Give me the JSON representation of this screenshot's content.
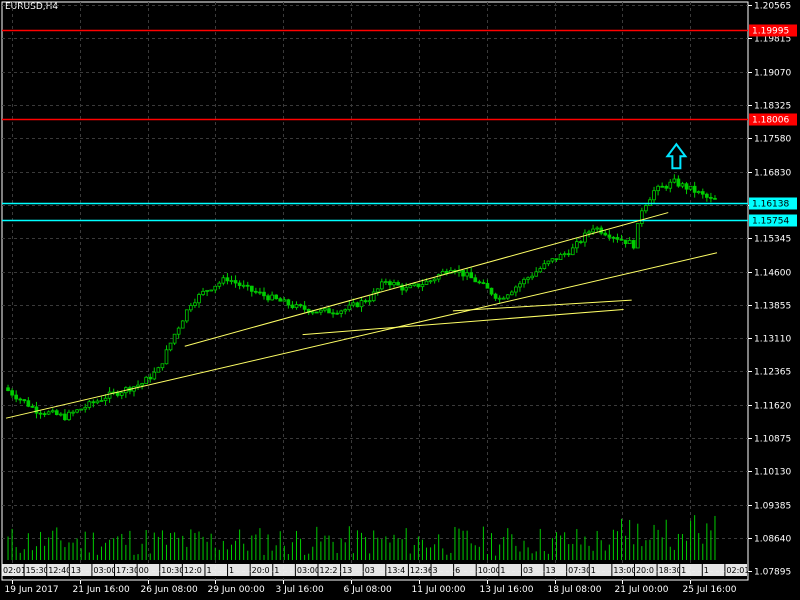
{
  "window": {
    "title": "EURUSD,H4"
  },
  "colors": {
    "background": "#000000",
    "grid": "#3a3a3a",
    "axis": "#ffffff",
    "candle": "#00cc00",
    "volume": "#00cc00",
    "hline_red": "#ff0000",
    "hline_cyan": "#00ffff",
    "trendline": "#ffff66",
    "arrow": "#00e5ff",
    "badge_text": "#ffffff"
  },
  "chart_data": {
    "type": "candlestick",
    "symbol": "EURUSD",
    "timeframe": "H4",
    "ylim": [
      1.077,
      1.2063
    ],
    "y_ticks": [
      "1.20565",
      "1.19815",
      "1.19070",
      "1.18325",
      "1.17580",
      "1.16830",
      "1.16085",
      "1.15345",
      "1.14600",
      "1.13855",
      "1.13110",
      "1.12365",
      "1.11620",
      "1.10875",
      "1.10130",
      "1.09385",
      "1.08640",
      "1.07895"
    ],
    "x_ticks": [
      "19 Jun 2017",
      "21 Jun 16:00",
      "26 Jun 08:00",
      "29 Jun 00:00",
      "3 Jul 16:00",
      "6 Jul 08:00",
      "11 Jul 00:00",
      "13 Jul 16:00",
      "18 Jul 08:00",
      "21 Jul 00:00",
      "25 Jul 16:00"
    ],
    "horizontal_lines": [
      {
        "label": "1.19995",
        "value": 1.19995,
        "color": "red"
      },
      {
        "label": "1.18006",
        "value": 1.18006,
        "color": "red"
      },
      {
        "label": "1.16138",
        "value": 1.16138,
        "color": "cyan"
      },
      {
        "label": "1.15754",
        "value": 1.15754,
        "color": "cyan"
      }
    ],
    "trendlines": [
      {
        "start": [
          0,
          1.1132
        ],
        "end": [
          175,
          1.1502
        ]
      },
      {
        "start": [
          44,
          1.1293
        ],
        "end": [
          163,
          1.1592
        ]
      },
      {
        "start": [
          73,
          1.1319
        ],
        "end": [
          152,
          1.1375
        ]
      },
      {
        "start": [
          110,
          1.1372
        ],
        "end": [
          154,
          1.1396
        ]
      }
    ],
    "arrow": {
      "bar": 165,
      "price": 1.1718,
      "direction": "up"
    },
    "candles": [],
    "volume_labels": [
      "02:01",
      "15:30",
      "12:40",
      "13",
      "03:00",
      "17:30",
      "00",
      "10:30",
      "12:0",
      "1",
      "1",
      "20:0",
      "1",
      "03:00",
      "12:2",
      "13",
      "03",
      "13:4",
      "12:36",
      "3",
      "6",
      "10:00",
      "1",
      "03",
      "13",
      "07:30",
      "1",
      "13:00",
      "20:0",
      "18:30",
      "1",
      "1",
      "02:01"
    ]
  }
}
